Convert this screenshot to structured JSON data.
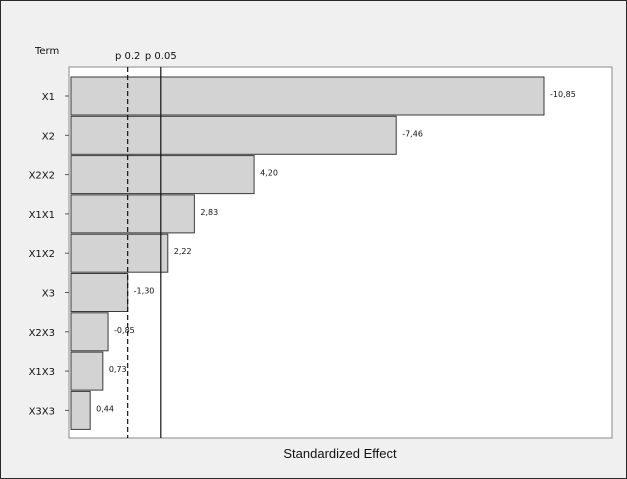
{
  "chart_data": {
    "type": "bar",
    "orientation": "horizontal",
    "title": "",
    "term_header": "Term",
    "xlabel": "Standardized Effect",
    "ylabel": "",
    "categories": [
      "X1",
      "X2",
      "X2X2",
      "X1X1",
      "X1X2",
      "X3",
      "X2X3",
      "X1X3",
      "X3X3"
    ],
    "values": [
      10.85,
      7.46,
      4.2,
      2.83,
      2.22,
      1.3,
      0.85,
      0.73,
      0.44
    ],
    "data_labels": [
      "-10,85",
      "-7,46",
      "4,20",
      "2,83",
      "2,22",
      "-1,30",
      "-0,85",
      "0,73",
      "0,44"
    ],
    "xlim": [
      0,
      11.8
    ],
    "reference_lines": [
      {
        "label": "p 0.2",
        "value": 1.3,
        "style": "dashed"
      },
      {
        "label": "p 0.05",
        "value": 2.06,
        "style": "solid"
      }
    ],
    "grid": false,
    "colors": {
      "bar_fill": "#d3d3d3",
      "bar_stroke": "#3a3a3a",
      "plot_bg": "#ffffff",
      "outer_bg": "#f0f0f0"
    }
  }
}
